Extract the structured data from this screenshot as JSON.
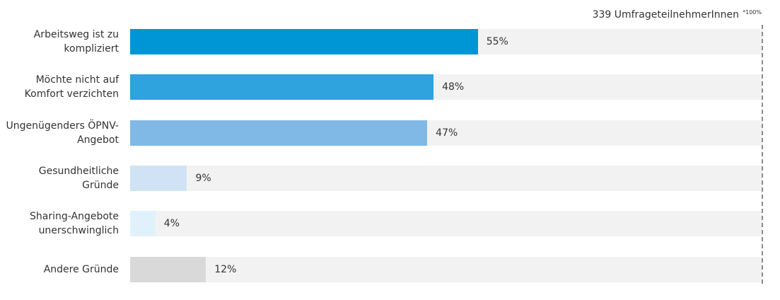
{
  "chart_data": {
    "type": "hbar",
    "note": "339 UmfrageteilnehmerInnen",
    "note_superscript": "*100%",
    "categories": [
      "Arbeitsweg ist zu kompliziert",
      "Möchte nicht auf Komfort verzichten",
      "Ungenügenders ÖPNV-Angebot",
      "Gesundheitliche Gründe",
      "Sharing-Angebote unerschwinglich",
      "Andere Gründe"
    ],
    "values": [
      55,
      48,
      47,
      9,
      4,
      12
    ],
    "value_labels": [
      "55%",
      "48%",
      "47%",
      "9%",
      "4%",
      "12%"
    ],
    "colors": [
      "#0096d6",
      "#2ea3de",
      "#80b9e6",
      "#cfe3f5",
      "#e1f1fb",
      "#d9d9d9"
    ],
    "track_color": "#f2f2f2",
    "xlim": [
      0,
      100
    ]
  }
}
